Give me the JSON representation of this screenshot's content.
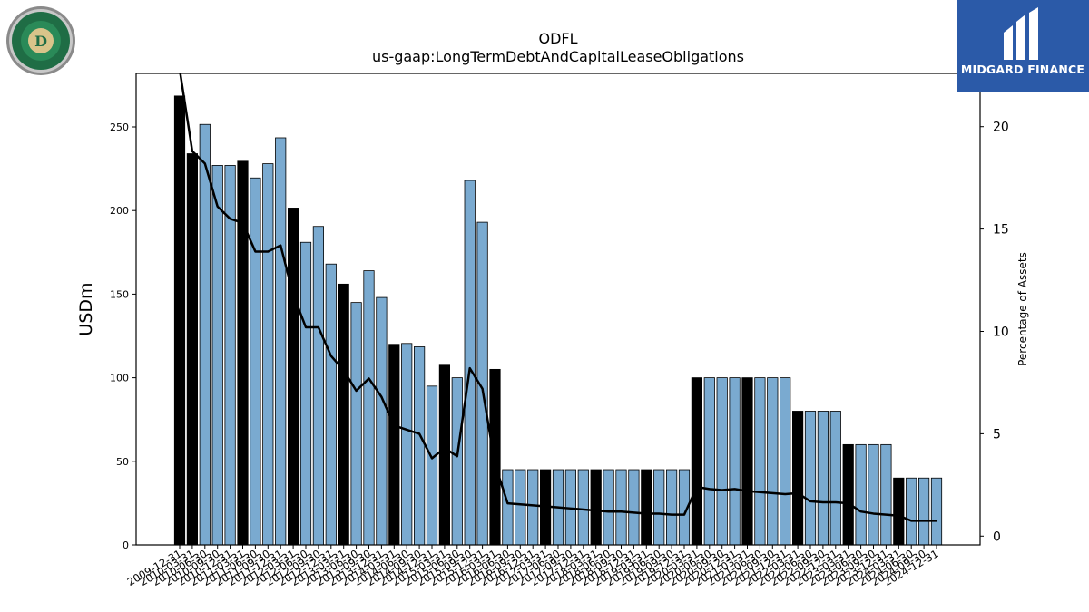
{
  "logos": {
    "left_company": "OLD DOMINION FREIGHT LINE",
    "brand": "MIDGARD FINANCE"
  },
  "chart_data": {
    "type": "bar",
    "title": "ODFL",
    "subtitle": "us-gaap:LongTermDebtAndCapitalLeaseObligations",
    "ylabel": "USDm",
    "y2label": "Percentage of Assets",
    "ylim": [
      0,
      282
    ],
    "y2lim": [
      -0.43,
      22.6
    ],
    "yticks": [
      0,
      50,
      100,
      150,
      200,
      250
    ],
    "y2ticks": [
      0,
      5,
      10,
      15,
      20
    ],
    "colors": {
      "annual_bar": "#000000",
      "quarter_bar": "#7aaad0",
      "line": "#000000"
    },
    "categories": [
      "2009-12-31",
      "2010-03-31",
      "2010-06-30",
      "2010-09-30",
      "2010-12-31",
      "2011-03-31",
      "2011-06-30",
      "2011-09-30",
      "2011-12-31",
      "2012-03-31",
      "2012-06-30",
      "2012-09-30",
      "2012-12-31",
      "2013-03-31",
      "2013-06-30",
      "2013-09-30",
      "2013-12-31",
      "2014-03-31",
      "2014-06-30",
      "2014-09-30",
      "2014-12-31",
      "2015-03-31",
      "2015-06-30",
      "2015-09-30",
      "2015-12-31",
      "2016-03-31",
      "2016-06-30",
      "2016-09-30",
      "2016-12-31",
      "2017-03-31",
      "2017-06-30",
      "2017-09-30",
      "2017-12-31",
      "2018-03-31",
      "2018-06-30",
      "2018-09-30",
      "2018-12-31",
      "2019-03-31",
      "2019-06-30",
      "2019-09-30",
      "2019-12-31",
      "2020-03-31",
      "2020-06-30",
      "2020-09-30",
      "2020-12-31",
      "2021-03-31",
      "2021-06-30",
      "2021-09-30",
      "2021-12-31",
      "2022-03-31",
      "2022-06-30",
      "2022-09-30",
      "2022-12-31",
      "2023-03-31",
      "2023-06-30",
      "2023-09-30",
      "2023-12-31",
      "2024-03-31",
      "2024-06-30",
      "2024-09-30",
      "2024-12-31"
    ],
    "xtick_labels": [
      "2009-12-31",
      "2010-03-31",
      "2010-06-30",
      "2010-09-30",
      "2010-12-31",
      "2011-03-31",
      "2011-06-30",
      "2011-09-30",
      "2011-12-31",
      "2012-03-31",
      "2012-06-30",
      "2012-09-30",
      "2012-12-31",
      "2013-03-31",
      "2013-06-30",
      "2013-09-30",
      "2013-12-31",
      "2014-03-31",
      "2014-06-30",
      "2014-09-30",
      "2014-12-31",
      "2015-03-31",
      "2015-06-30",
      "2015-09-30",
      "2015-12-31",
      "2016-03-31",
      "2016-06-30",
      "2016-09-30",
      "2016-12-31",
      "2017-03-31",
      "2017-06-30",
      "2017-09-30",
      "2017-12-31",
      "2018-03-31",
      "2018-06-30",
      "2018-09-30",
      "2018-12-31",
      "2019-03-31",
      "2019-06-30",
      "2019-09-30",
      "2019-12-31",
      "2020-03-31",
      "2020-06-30",
      "2020-09-30",
      "2020-12-31",
      "2021-03-31",
      "2021-06-30",
      "2021-09-30",
      "2021-12-31",
      "2022-03-31",
      "2022-06-30",
      "2022-09-30",
      "2022-12-31",
      "2023-03-31",
      "2023-06-30",
      "2023-09-30",
      "2023-12-31",
      "2024-03-31",
      "2024-06-30",
      "2024-09-30",
      "2024-12-31"
    ],
    "series": [
      {
        "kind": "bar",
        "axis": "left",
        "values": [
          268.5,
          234,
          251.5,
          227,
          227,
          229.5,
          219.5,
          228,
          243.5,
          201.5,
          181,
          190.5,
          168,
          156,
          145,
          164,
          148,
          120,
          120.5,
          118.5,
          95,
          107.5,
          100,
          218,
          193,
          105,
          45,
          45,
          45,
          45,
          45,
          45,
          45,
          45,
          45,
          45,
          45,
          45,
          45,
          45,
          45,
          100,
          100,
          100,
          100,
          100,
          100,
          100,
          100,
          80,
          80,
          80,
          80,
          60,
          60,
          60,
          60,
          40,
          40,
          40,
          40
        ],
        "is_annual": [
          true,
          true,
          false,
          false,
          false,
          true,
          false,
          false,
          false,
          true,
          false,
          false,
          false,
          true,
          false,
          false,
          false,
          true,
          false,
          false,
          false,
          true,
          false,
          false,
          false,
          true,
          false,
          false,
          false,
          true,
          false,
          false,
          false,
          true,
          false,
          false,
          false,
          true,
          false,
          false,
          false,
          true,
          false,
          false,
          false,
          true,
          false,
          false,
          false,
          true,
          false,
          false,
          false,
          true,
          false,
          false,
          false,
          true,
          false,
          false,
          false
        ]
      },
      {
        "kind": "line",
        "axis": "right",
        "values": [
          22.8,
          18.8,
          18.2,
          16.1,
          15.5,
          15.3,
          13.9,
          13.9,
          14.2,
          11.8,
          10.2,
          10.2,
          8.8,
          8.1,
          7.1,
          7.7,
          6.8,
          5.4,
          5.2,
          5.0,
          3.8,
          4.3,
          3.9,
          8.2,
          7.2,
          3.5,
          1.6,
          1.55,
          1.5,
          1.45,
          1.4,
          1.35,
          1.3,
          1.25,
          1.2,
          1.2,
          1.15,
          1.1,
          1.1,
          1.05,
          1.05,
          2.4,
          2.3,
          2.25,
          2.3,
          2.2,
          2.15,
          2.1,
          2.05,
          2.1,
          1.7,
          1.65,
          1.65,
          1.6,
          1.2,
          1.1,
          1.05,
          1.0,
          0.75,
          0.75,
          0.75
        ]
      }
    ]
  }
}
